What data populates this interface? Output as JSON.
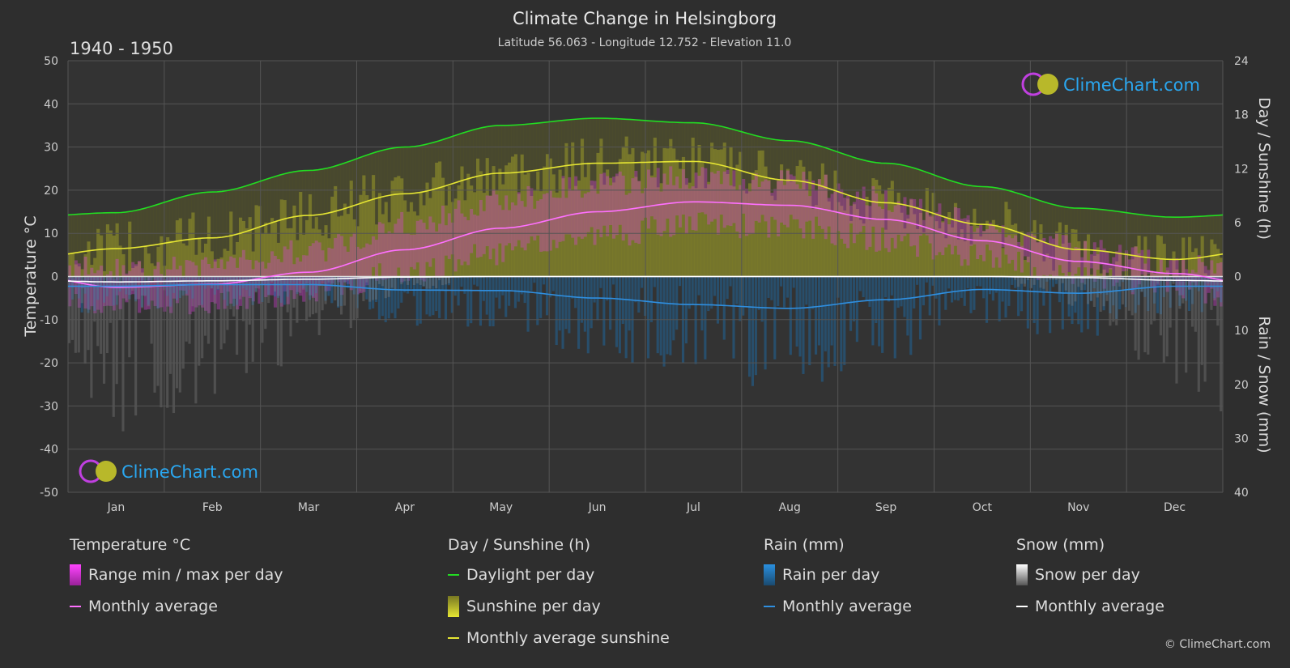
{
  "header": {
    "title": "Climate Change in Helsingborg",
    "subtitle": "Latitude 56.063 - Longitude 12.752 - Elevation 11.0",
    "period": "1940 - 1950"
  },
  "watermark": "ClimeChart.com",
  "copyright": "© ClimeChart.com",
  "colors": {
    "background": "#2e2e2e",
    "temp_range": "#e040e0",
    "temp_avg": "#ff70ff",
    "daylight": "#22dd22",
    "sunshine_fill": "#9a9a2a",
    "sunshine_avg": "#e6e633",
    "rain_fill": "#1a6fb0",
    "rain_avg": "#2f8fe0",
    "snow_fill": "#888888",
    "snow_avg": "#ffffff",
    "brand_text": "#2aa7f0"
  },
  "legend": {
    "temperature": {
      "title": "Temperature °C",
      "range": "Range min / max per day",
      "avg": "Monthly average"
    },
    "sun": {
      "title": "Day / Sunshine (h)",
      "daylight": "Daylight per day",
      "sunshine": "Sunshine per day",
      "avg": "Monthly average sunshine"
    },
    "rain": {
      "title": "Rain (mm)",
      "per_day": "Rain per day",
      "avg": "Monthly average"
    },
    "snow": {
      "title": "Snow (mm)",
      "per_day": "Snow per day",
      "avg": "Monthly average"
    }
  },
  "chart_data": {
    "type": "line",
    "categories": [
      "Jan",
      "Feb",
      "Mar",
      "Apr",
      "May",
      "Jun",
      "Jul",
      "Aug",
      "Sep",
      "Oct",
      "Nov",
      "Dec"
    ],
    "axes": {
      "left": {
        "label": "Temperature °C",
        "range": [
          -50,
          50
        ],
        "ticks": [
          50,
          40,
          30,
          20,
          10,
          0,
          -10,
          -20,
          -30,
          -40,
          -50
        ]
      },
      "right_top": {
        "label": "Day / Sunshine (h)",
        "range": [
          0,
          24
        ],
        "ticks": [
          24,
          18,
          12,
          6,
          0
        ]
      },
      "right_bottom": {
        "label": "Rain / Snow (mm)",
        "range": [
          0,
          40
        ],
        "ticks": [
          0,
          10,
          20,
          30,
          40
        ]
      }
    },
    "grid": true,
    "series": [
      {
        "name": "Daylight per day",
        "unit": "h",
        "values": [
          7.1,
          9.4,
          11.8,
          14.4,
          16.8,
          17.6,
          17.1,
          15.1,
          12.6,
          10.0,
          7.6,
          6.6
        ]
      },
      {
        "name": "Monthly average sunshine",
        "unit": "h",
        "values": [
          3.1,
          4.3,
          6.8,
          9.2,
          11.5,
          12.6,
          12.8,
          10.7,
          8.2,
          5.8,
          3.0,
          1.9
        ]
      },
      {
        "name": "Temperature monthly average",
        "unit": "°C",
        "values": [
          -2.5,
          -1.8,
          1.0,
          6.2,
          11.2,
          15.0,
          17.3,
          16.5,
          13.2,
          8.3,
          3.5,
          0.7
        ]
      },
      {
        "name": "Temperature daily max avg",
        "unit": "°C",
        "values": [
          1.5,
          2.5,
          6.0,
          12.0,
          17.5,
          21.5,
          23.0,
          22.0,
          18.0,
          12.0,
          6.5,
          3.0
        ]
      },
      {
        "name": "Temperature daily min avg",
        "unit": "°C",
        "values": [
          -6.5,
          -6.0,
          -3.5,
          1.0,
          5.5,
          9.5,
          12.0,
          11.5,
          8.5,
          4.5,
          0.5,
          -2.5
        ]
      },
      {
        "name": "Rain monthly average",
        "unit": "mm",
        "values": [
          1.8,
          1.5,
          1.5,
          2.5,
          2.6,
          4.0,
          5.2,
          5.9,
          4.3,
          2.4,
          3.1,
          1.8
        ]
      },
      {
        "name": "Snow monthly average",
        "unit": "mm",
        "values": [
          1.0,
          0.8,
          0.5,
          0.1,
          0.0,
          0.0,
          0.0,
          0.0,
          0.0,
          0.0,
          0.2,
          0.7
        ]
      }
    ]
  }
}
